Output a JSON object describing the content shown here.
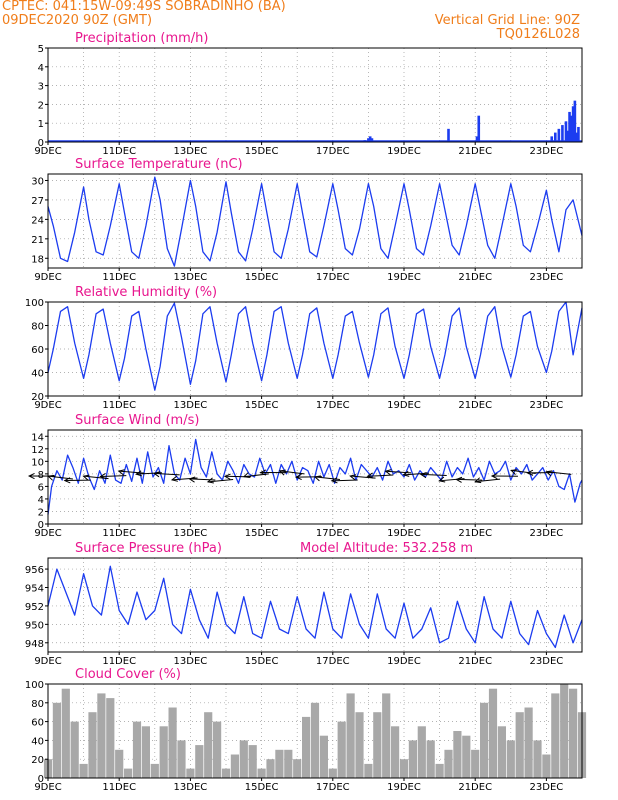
{
  "header": {
    "line1": "CPTEC:  041:15W-09:49S  SOBRADINHO (BA)",
    "line2": "09DEC2020 90Z (GMT)",
    "right1": "Vertical Grid Line: 90Z",
    "right2": "TQ0126L028",
    "color": "#f07d1a"
  },
  "colors": {
    "title": "#e8168e",
    "line": "#1c3cf0",
    "cloud": "#a8a8a8",
    "wind": "#000000"
  },
  "chart_data": [
    {
      "id": "precip",
      "type": "bar",
      "title": "Precipitation (mm/h)",
      "ylim": [
        0,
        5
      ],
      "yticks": [
        0,
        1,
        2,
        3,
        4,
        5
      ],
      "x_tick_labels": [
        "9DEC",
        "11DEC",
        "13DEC",
        "15DEC",
        "17DEC",
        "19DEC",
        "21DEC",
        "23DEC"
      ],
      "x_day_range": [
        9,
        24
      ],
      "x": [
        17.9,
        18.0,
        18.05,
        18.1,
        20.25,
        21.05,
        21.1,
        23.15,
        23.25,
        23.35,
        23.45,
        23.55,
        23.6,
        23.65,
        23.7,
        23.75,
        23.8,
        23.85,
        23.9
      ],
      "values": [
        0.1,
        0.2,
        0.3,
        0.2,
        0.7,
        0.3,
        1.4,
        0.3,
        0.5,
        0.7,
        0.9,
        1.1,
        0.6,
        1.6,
        1.4,
        1.9,
        2.2,
        0.5,
        0.8
      ]
    },
    {
      "id": "temp",
      "type": "line",
      "title": "Surface Temperature (nC)",
      "ylim": [
        16.5,
        31
      ],
      "yticks": [
        18,
        21,
        24,
        27,
        30
      ],
      "x_tick_labels": [
        "9DEC",
        "11DEC",
        "13DEC",
        "15DEC",
        "17DEC",
        "19DEC",
        "21DEC",
        "23DEC"
      ],
      "x_day_range": [
        9,
        24
      ],
      "x": [
        9.0,
        9.15,
        9.35,
        9.55,
        9.75,
        10.0,
        10.15,
        10.35,
        10.55,
        10.75,
        11.0,
        11.15,
        11.35,
        11.55,
        11.75,
        12.0,
        12.15,
        12.35,
        12.55,
        12.75,
        13.0,
        13.15,
        13.35,
        13.55,
        13.75,
        14.0,
        14.15,
        14.35,
        14.55,
        14.75,
        15.0,
        15.15,
        15.35,
        15.55,
        15.75,
        16.0,
        16.15,
        16.35,
        16.55,
        16.75,
        17.0,
        17.15,
        17.35,
        17.55,
        17.75,
        18.0,
        18.15,
        18.35,
        18.55,
        18.75,
        19.0,
        19.15,
        19.35,
        19.55,
        19.75,
        20.0,
        20.15,
        20.35,
        20.55,
        20.75,
        21.0,
        21.15,
        21.35,
        21.55,
        21.75,
        22.0,
        22.15,
        22.35,
        22.55,
        22.75,
        23.0,
        23.15,
        23.35,
        23.55,
        23.75,
        24.0
      ],
      "values": [
        26.0,
        23.0,
        18.0,
        17.5,
        22.0,
        29.0,
        24.0,
        19.0,
        18.5,
        23.0,
        29.5,
        25.0,
        19.0,
        18.0,
        23.0,
        30.5,
        27.0,
        19.5,
        16.8,
        22.5,
        30.0,
        26.0,
        19.0,
        17.6,
        22.0,
        29.8,
        25.0,
        19.0,
        17.6,
        22.5,
        29.5,
        25.0,
        19.0,
        18.0,
        22.5,
        29.5,
        25.0,
        19.0,
        18.2,
        23.0,
        29.5,
        25.5,
        19.5,
        18.5,
        22.5,
        29.5,
        26.0,
        19.5,
        18.0,
        23.0,
        29.5,
        25.5,
        19.5,
        18.5,
        23.0,
        29.5,
        25.5,
        20.0,
        18.5,
        23.0,
        29.5,
        25.5,
        20.0,
        18.0,
        23.0,
        29.5,
        26.0,
        20.0,
        19.0,
        23.0,
        28.5,
        24.0,
        19.0,
        25.5,
        27.0,
        21.5
      ]
    },
    {
      "id": "rh",
      "type": "line",
      "title": "Relative Humidity (%)",
      "ylim": [
        20,
        100
      ],
      "yticks": [
        20,
        40,
        60,
        80,
        100
      ],
      "x_tick_labels": [
        "9DEC",
        "11DEC",
        "13DEC",
        "15DEC",
        "17DEC",
        "19DEC",
        "21DEC",
        "23DEC"
      ],
      "x_day_range": [
        9,
        24
      ],
      "x": [
        9.0,
        9.15,
        9.35,
        9.55,
        9.75,
        10.0,
        10.15,
        10.35,
        10.55,
        10.75,
        11.0,
        11.15,
        11.35,
        11.55,
        11.75,
        12.0,
        12.15,
        12.35,
        12.55,
        12.75,
        13.0,
        13.15,
        13.35,
        13.55,
        13.75,
        14.0,
        14.15,
        14.35,
        14.55,
        14.75,
        15.0,
        15.15,
        15.35,
        15.55,
        15.75,
        16.0,
        16.15,
        16.35,
        16.55,
        16.75,
        17.0,
        17.15,
        17.35,
        17.55,
        17.75,
        18.0,
        18.15,
        18.35,
        18.55,
        18.75,
        19.0,
        19.15,
        19.35,
        19.55,
        19.75,
        20.0,
        20.15,
        20.35,
        20.55,
        20.75,
        21.0,
        21.15,
        21.35,
        21.55,
        21.75,
        22.0,
        22.15,
        22.35,
        22.55,
        22.75,
        23.0,
        23.15,
        23.35,
        23.55,
        23.75,
        24.0
      ],
      "values": [
        40.0,
        60.0,
        92.0,
        96.0,
        65.0,
        35.0,
        55.0,
        90.0,
        94.0,
        65.0,
        33.0,
        52.0,
        88.0,
        92.0,
        60.0,
        25.0,
        45.0,
        88.0,
        99.0,
        70.0,
        30.0,
        50.0,
        90.0,
        96.0,
        65.0,
        32.0,
        55.0,
        90.0,
        96.0,
        65.0,
        33.0,
        55.0,
        92.0,
        96.0,
        65.0,
        35.0,
        55.0,
        90.0,
        95.0,
        65.0,
        35.0,
        55.0,
        88.0,
        92.0,
        65.0,
        36.0,
        55.0,
        90.0,
        95.0,
        62.0,
        35.0,
        55.0,
        90.0,
        94.0,
        62.0,
        35.0,
        55.0,
        88.0,
        95.0,
        62.0,
        35.0,
        55.0,
        88.0,
        96.0,
        62.0,
        36.0,
        55.0,
        88.0,
        92.0,
        62.0,
        40.0,
        58.0,
        92.0,
        100.0,
        55.0,
        95.0
      ]
    },
    {
      "id": "wind",
      "type": "line",
      "title": "Surface Wind (m/s)",
      "ylim": [
        0,
        15
      ],
      "yticks": [
        0,
        2,
        4,
        6,
        8,
        10,
        12,
        14
      ],
      "x_tick_labels": [
        "9DEC",
        "11DEC",
        "13DEC",
        "15DEC",
        "17DEC",
        "19DEC",
        "21DEC",
        "23DEC"
      ],
      "x_day_range": [
        9,
        24
      ],
      "x": [
        9.0,
        9.1,
        9.25,
        9.4,
        9.55,
        9.7,
        9.85,
        10.0,
        10.15,
        10.3,
        10.45,
        10.6,
        10.75,
        10.9,
        11.05,
        11.2,
        11.35,
        11.5,
        11.65,
        11.8,
        11.95,
        12.1,
        12.25,
        12.4,
        12.55,
        12.7,
        12.85,
        13.0,
        13.15,
        13.3,
        13.45,
        13.6,
        13.75,
        13.9,
        14.05,
        14.2,
        14.35,
        14.5,
        14.65,
        14.8,
        14.95,
        15.1,
        15.25,
        15.4,
        15.55,
        15.7,
        15.85,
        16.0,
        16.15,
        16.3,
        16.45,
        16.6,
        16.75,
        16.9,
        17.05,
        17.2,
        17.35,
        17.5,
        17.65,
        17.8,
        17.95,
        18.1,
        18.25,
        18.4,
        18.55,
        18.7,
        18.85,
        19.0,
        19.15,
        19.3,
        19.45,
        19.6,
        19.75,
        19.9,
        20.05,
        20.2,
        20.35,
        20.5,
        20.65,
        20.8,
        20.95,
        21.1,
        21.25,
        21.4,
        21.55,
        21.7,
        21.85,
        22.0,
        22.15,
        22.3,
        22.45,
        22.6,
        22.75,
        22.9,
        23.05,
        23.2,
        23.35,
        23.5,
        23.65,
        23.8,
        23.95,
        24.0
      ],
      "values": [
        1.5,
        6.0,
        8.5,
        7.0,
        11.0,
        9.0,
        6.5,
        10.5,
        7.5,
        5.5,
        8.5,
        6.5,
        11.0,
        7.0,
        6.5,
        9.5,
        6.8,
        10.5,
        6.5,
        11.5,
        7.5,
        9.0,
        6.5,
        12.5,
        8.0,
        7.0,
        10.5,
        8.0,
        13.5,
        9.0,
        7.5,
        11.5,
        8.0,
        7.0,
        10.0,
        8.5,
        6.5,
        9.5,
        8.0,
        7.5,
        10.5,
        8.0,
        9.5,
        6.5,
        9.5,
        8.0,
        10.0,
        7.0,
        9.0,
        8.5,
        6.5,
        10.0,
        7.5,
        9.5,
        6.5,
        9.0,
        8.0,
        10.5,
        7.0,
        9.5,
        8.5,
        7.5,
        9.0,
        7.0,
        10.0,
        8.0,
        8.5,
        7.5,
        9.5,
        7.0,
        8.5,
        7.5,
        9.0,
        8.0,
        7.0,
        10.0,
        7.5,
        9.0,
        8.0,
        10.5,
        7.5,
        9.0,
        7.0,
        10.0,
        8.0,
        8.5,
        10.0,
        7.0,
        9.0,
        8.0,
        9.5,
        7.0,
        8.0,
        9.0,
        7.0,
        8.5,
        6.0,
        5.5,
        8.0,
        3.5,
        6.5,
        7.0
      ]
    },
    {
      "id": "pressure",
      "type": "line",
      "title": "Surface Pressure (hPa)",
      "annotation": "Model Altitude: 532.258 m",
      "ylim": [
        947,
        957.2
      ],
      "yticks": [
        948,
        950,
        952,
        954,
        956
      ],
      "x_tick_labels": [
        "9DEC",
        "11DEC",
        "13DEC",
        "15DEC",
        "17DEC",
        "19DEC",
        "21DEC",
        "23DEC"
      ],
      "x_day_range": [
        9,
        24
      ],
      "x": [
        9.0,
        9.25,
        9.5,
        9.75,
        10.0,
        10.25,
        10.5,
        10.75,
        11.0,
        11.25,
        11.5,
        11.75,
        12.0,
        12.25,
        12.5,
        12.75,
        13.0,
        13.25,
        13.5,
        13.75,
        14.0,
        14.25,
        14.5,
        14.75,
        15.0,
        15.25,
        15.5,
        15.75,
        16.0,
        16.25,
        16.5,
        16.75,
        17.0,
        17.25,
        17.5,
        17.75,
        18.0,
        18.25,
        18.5,
        18.75,
        19.0,
        19.25,
        19.5,
        19.75,
        20.0,
        20.25,
        20.5,
        20.75,
        21.0,
        21.25,
        21.5,
        21.75,
        22.0,
        22.25,
        22.5,
        22.75,
        23.0,
        23.25,
        23.5,
        23.75,
        24.0
      ],
      "values": [
        952.0,
        956.0,
        953.5,
        951.0,
        955.5,
        952.0,
        951.0,
        956.3,
        951.5,
        950.0,
        953.5,
        950.5,
        951.5,
        955.0,
        950.0,
        949.0,
        953.8,
        950.5,
        948.5,
        953.5,
        950.0,
        949.0,
        953.0,
        949.0,
        948.5,
        952.5,
        949.5,
        949.0,
        953.0,
        949.5,
        948.5,
        953.5,
        949.5,
        948.5,
        953.3,
        950.0,
        948.5,
        953.3,
        949.5,
        948.5,
        952.3,
        948.5,
        949.5,
        951.8,
        948.0,
        948.5,
        952.5,
        949.5,
        948.0,
        953.0,
        949.5,
        948.5,
        952.5,
        949.0,
        947.8,
        951.5,
        949.0,
        947.5,
        951.0,
        948.0,
        950.5
      ]
    },
    {
      "id": "cloud",
      "type": "bar",
      "title": "Cloud Cover (%)",
      "ylim": [
        0,
        100
      ],
      "yticks": [
        0,
        20,
        40,
        60,
        80,
        100
      ],
      "x_tick_labels": [
        "9DEC",
        "11DEC",
        "13DEC",
        "15DEC",
        "17DEC",
        "19DEC",
        "21DEC",
        "23DEC"
      ],
      "x_day_range": [
        9,
        24
      ],
      "x": [
        9.0,
        9.25,
        9.5,
        9.75,
        10.0,
        10.25,
        10.5,
        10.75,
        11.0,
        11.25,
        11.5,
        11.75,
        12.0,
        12.25,
        12.5,
        12.75,
        13.0,
        13.25,
        13.5,
        13.75,
        14.0,
        14.25,
        14.5,
        14.75,
        15.0,
        15.25,
        15.5,
        15.75,
        16.0,
        16.25,
        16.5,
        16.75,
        17.0,
        17.25,
        17.5,
        17.75,
        18.0,
        18.25,
        18.5,
        18.75,
        19.0,
        19.25,
        19.5,
        19.75,
        20.0,
        20.25,
        20.5,
        20.75,
        21.0,
        21.25,
        21.5,
        21.75,
        22.0,
        22.25,
        22.5,
        22.75,
        23.0,
        23.25,
        23.5,
        23.75,
        24.0
      ],
      "values": [
        20,
        80,
        95,
        60,
        15,
        70,
        90,
        85,
        30,
        10,
        60,
        55,
        15,
        55,
        75,
        40,
        10,
        35,
        70,
        60,
        10,
        25,
        40,
        35,
        10,
        20,
        30,
        30,
        20,
        65,
        80,
        45,
        10,
        60,
        90,
        70,
        15,
        70,
        90,
        55,
        20,
        40,
        55,
        40,
        15,
        30,
        50,
        45,
        30,
        80,
        95,
        55,
        40,
        70,
        75,
        40,
        25,
        90,
        100,
        95,
        70
      ]
    }
  ]
}
